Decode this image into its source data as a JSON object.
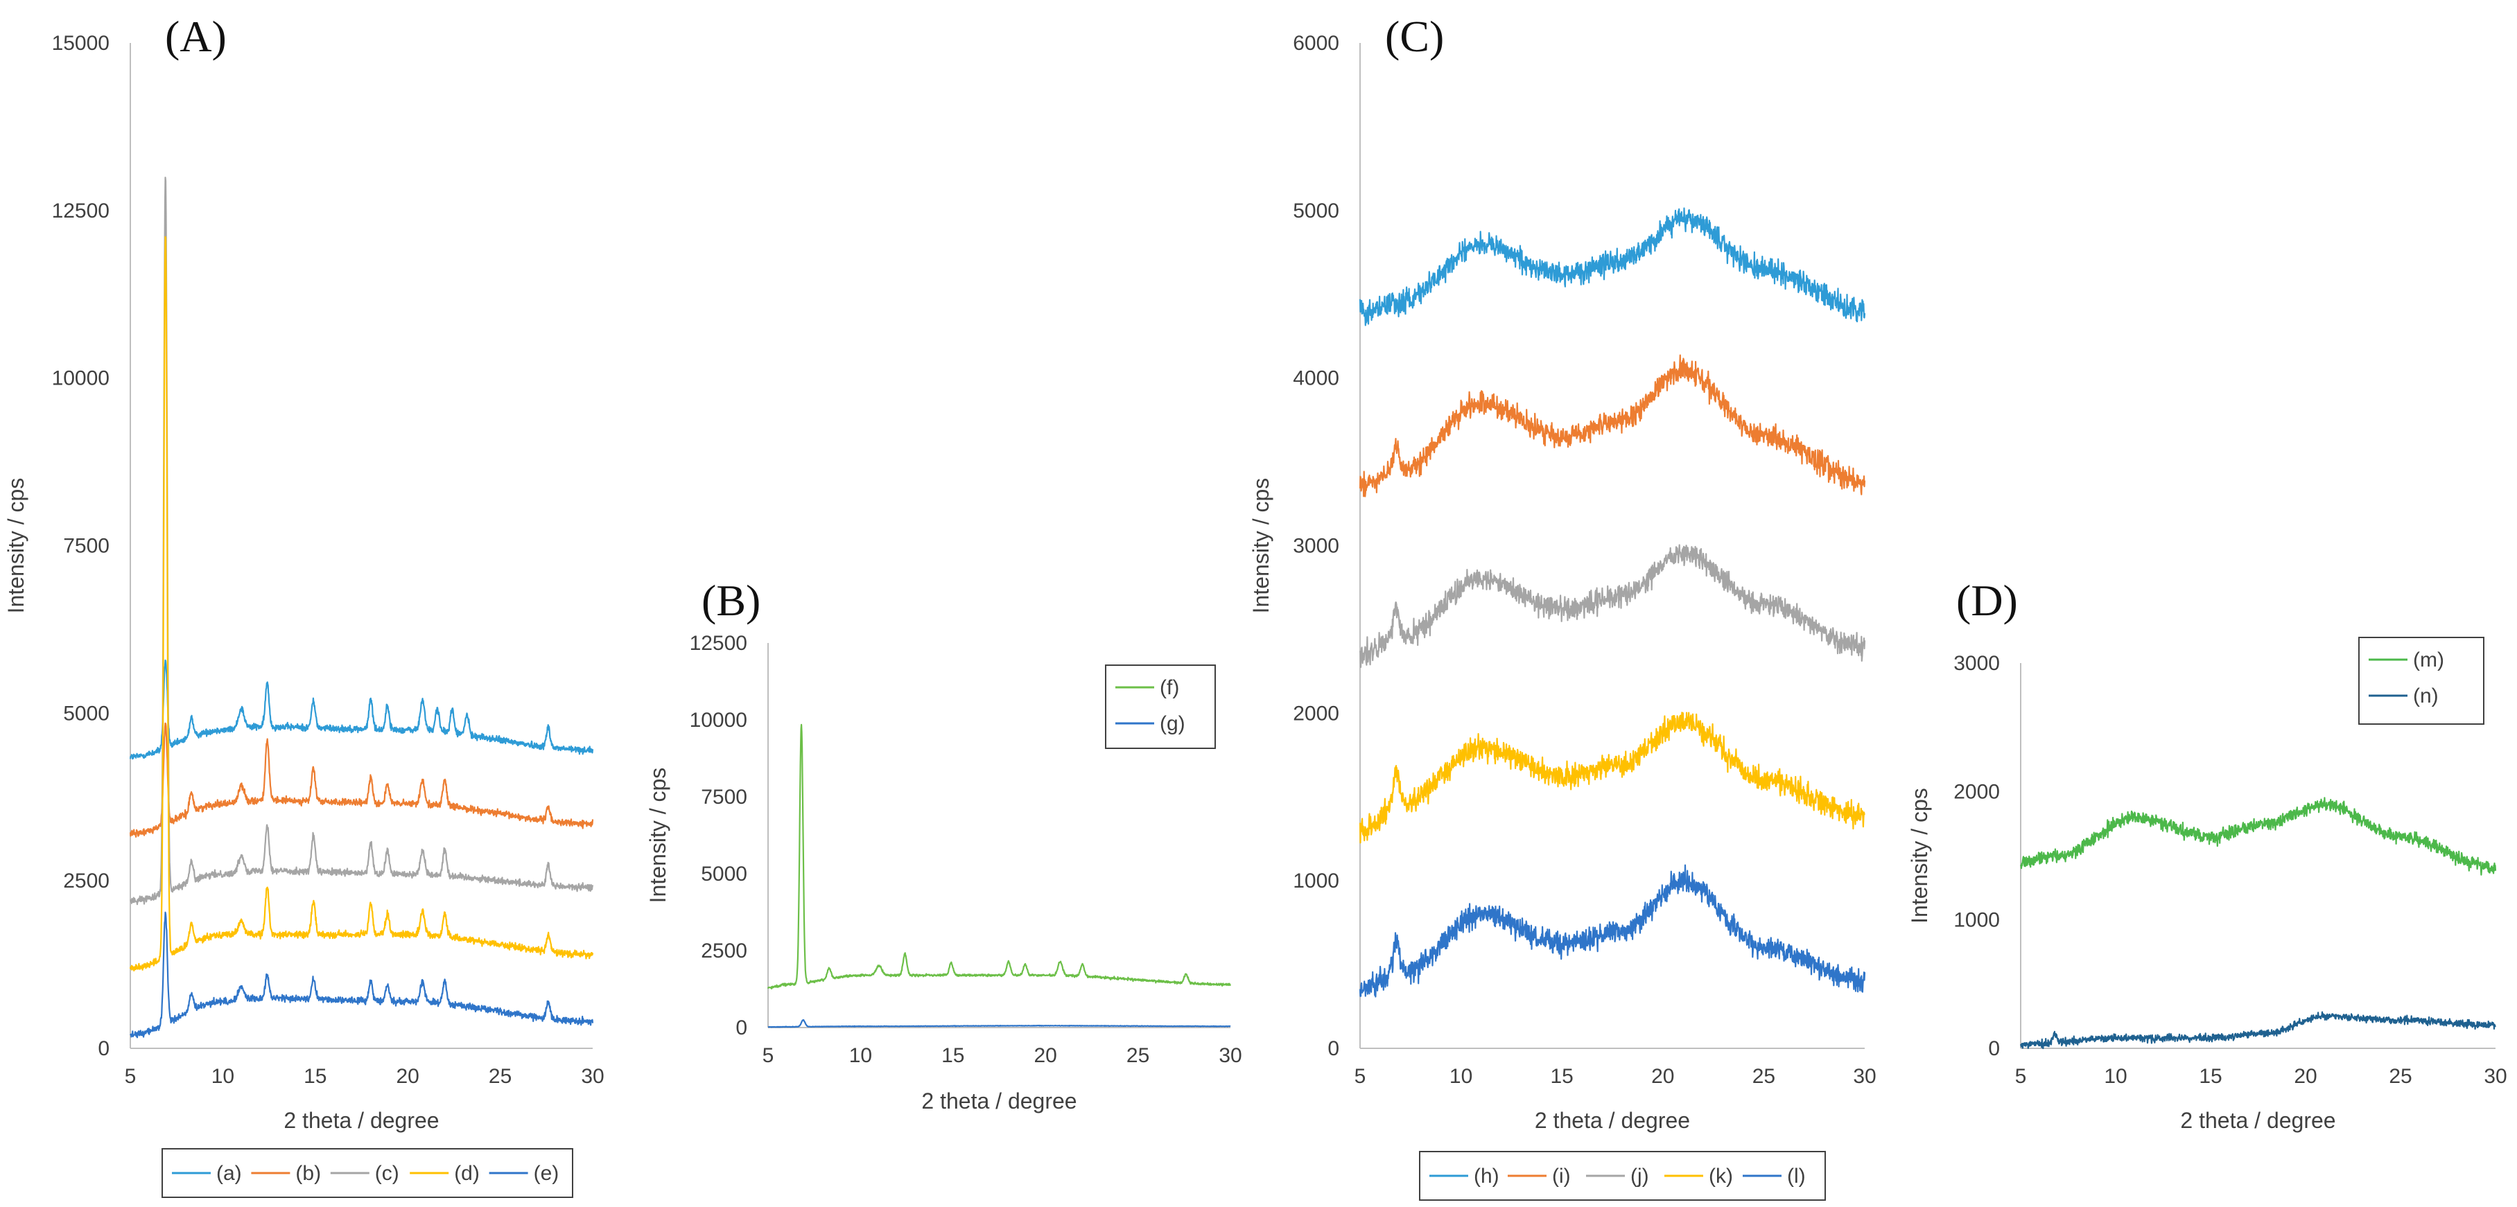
{
  "chart_data": [
    {
      "panel_label": "(A)",
      "type": "line",
      "xlabel": "2 theta / degree",
      "ylabel": "Intensity / cps",
      "xlim": [
        5,
        30
      ],
      "ylim": [
        0,
        15000
      ],
      "xticks": [
        5,
        10,
        15,
        20,
        25,
        30
      ],
      "yticks": [
        0,
        2500,
        5000,
        7500,
        10000,
        12500,
        15000
      ],
      "grid": false,
      "legend_position": "bottom-outside",
      "series": [
        {
          "name": "(a)",
          "color": "#2E9BD6",
          "baseline": [
            [
              5,
              4350
            ],
            [
              10,
              4750
            ],
            [
              12,
              4800
            ],
            [
              20,
              4750
            ],
            [
              30,
              4450
            ]
          ],
          "noise": 80,
          "peaks": [
            [
              6.9,
              1300,
              0.1
            ],
            [
              8.3,
              300,
              0.1
            ],
            [
              11.0,
              300,
              0.15
            ],
            [
              12.4,
              650,
              0.1
            ],
            [
              14.9,
              400,
              0.1
            ],
            [
              18.0,
              450,
              0.1
            ],
            [
              18.9,
              350,
              0.1
            ],
            [
              20.8,
              450,
              0.12
            ],
            [
              21.6,
              350,
              0.1
            ],
            [
              22.4,
              350,
              0.1
            ],
            [
              23.2,
              300,
              0.1
            ],
            [
              27.6,
              300,
              0.1
            ]
          ]
        },
        {
          "name": "(b)",
          "color": "#ED7D31",
          "baseline": [
            [
              5,
              3200
            ],
            [
              10,
              3650
            ],
            [
              12,
              3700
            ],
            [
              20,
              3650
            ],
            [
              30,
              3350
            ]
          ],
          "noise": 80,
          "peaks": [
            [
              6.9,
              1500,
              0.1
            ],
            [
              8.3,
              300,
              0.1
            ],
            [
              11.0,
              250,
              0.15
            ],
            [
              12.4,
              900,
              0.1
            ],
            [
              14.9,
              500,
              0.1
            ],
            [
              18.0,
              400,
              0.1
            ],
            [
              18.9,
              300,
              0.1
            ],
            [
              20.8,
              350,
              0.12
            ],
            [
              22.0,
              400,
              0.1
            ],
            [
              27.6,
              200,
              0.1
            ]
          ]
        },
        {
          "name": "(c)",
          "color": "#A5A5A5",
          "baseline": [
            [
              5,
              2200
            ],
            [
              10,
              2600
            ],
            [
              12,
              2650
            ],
            [
              20,
              2600
            ],
            [
              30,
              2400
            ]
          ],
          "noise": 80,
          "peaks": [
            [
              6.9,
              10700,
              0.09
            ],
            [
              8.3,
              300,
              0.1
            ],
            [
              11.0,
              250,
              0.15
            ],
            [
              12.4,
              700,
              0.1
            ],
            [
              14.9,
              550,
              0.1
            ],
            [
              18.0,
              450,
              0.1
            ],
            [
              18.9,
              350,
              0.1
            ],
            [
              20.8,
              350,
              0.12
            ],
            [
              22.0,
              400,
              0.1
            ],
            [
              27.6,
              300,
              0.1
            ]
          ]
        },
        {
          "name": "(d)",
          "color": "#FFC000",
          "baseline": [
            [
              5,
              1200
            ],
            [
              10,
              1700
            ],
            [
              12,
              1700
            ],
            [
              20,
              1700
            ],
            [
              30,
              1400
            ]
          ],
          "noise": 80,
          "peaks": [
            [
              6.9,
              10800,
              0.09
            ],
            [
              8.3,
              300,
              0.1
            ],
            [
              11.0,
              200,
              0.15
            ],
            [
              12.4,
              700,
              0.1
            ],
            [
              14.9,
              500,
              0.1
            ],
            [
              18.0,
              450,
              0.1
            ],
            [
              18.9,
              300,
              0.1
            ],
            [
              20.8,
              350,
              0.12
            ],
            [
              22.0,
              350,
              0.1
            ],
            [
              27.6,
              250,
              0.1
            ]
          ]
        },
        {
          "name": "(e)",
          "color": "#2F75C9",
          "baseline": [
            [
              5,
              200
            ],
            [
              10,
              700
            ],
            [
              12,
              750
            ],
            [
              20,
              700
            ],
            [
              30,
              400
            ]
          ],
          "noise": 80,
          "peaks": [
            [
              6.9,
              1650,
              0.1
            ],
            [
              8.3,
              250,
              0.1
            ],
            [
              11.0,
              200,
              0.15
            ],
            [
              12.4,
              350,
              0.1
            ],
            [
              14.9,
              300,
              0.1
            ],
            [
              18.0,
              300,
              0.1
            ],
            [
              18.9,
              250,
              0.1
            ],
            [
              20.8,
              300,
              0.12
            ],
            [
              22.0,
              350,
              0.1
            ],
            [
              27.6,
              250,
              0.1
            ]
          ]
        }
      ]
    },
    {
      "panel_label": "(B)",
      "type": "line",
      "xlabel": "2 theta / degree",
      "ylabel": "Intensity / cps",
      "xlim": [
        5,
        30
      ],
      "ylim": [
        0,
        12500
      ],
      "xticks": [
        5,
        10,
        15,
        20,
        25,
        30
      ],
      "yticks": [
        0,
        2500,
        5000,
        7500,
        10000,
        12500
      ],
      "grid": false,
      "legend_position": "top-right",
      "series": [
        {
          "name": "(f)",
          "color": "#6CBF48",
          "baseline": [
            [
              5,
              1300
            ],
            [
              6,
              1400
            ],
            [
              10,
              1700
            ],
            [
              13,
              1700
            ],
            [
              20,
              1700
            ],
            [
              30,
              1400
            ]
          ],
          "noise": 60,
          "peaks": [
            [
              6.8,
              8400,
              0.09
            ],
            [
              8.3,
              350,
              0.1
            ],
            [
              11.0,
              300,
              0.15
            ],
            [
              12.4,
              700,
              0.1
            ],
            [
              14.9,
              400,
              0.1
            ],
            [
              18.0,
              450,
              0.1
            ],
            [
              18.9,
              350,
              0.1
            ],
            [
              20.8,
              450,
              0.12
            ],
            [
              22.0,
              400,
              0.1
            ],
            [
              27.6,
              300,
              0.1
            ]
          ]
        },
        {
          "name": "(g)",
          "color": "#2F75C9",
          "baseline": [
            [
              5,
              20
            ],
            [
              10,
              40
            ],
            [
              20,
              60
            ],
            [
              30,
              40
            ]
          ],
          "noise": 12,
          "peaks": [
            [
              6.9,
              220,
              0.1
            ]
          ]
        }
      ]
    },
    {
      "panel_label": "(C)",
      "type": "line",
      "xlabel": "2 theta / degree",
      "ylabel": "Intensity / cps",
      "xlim": [
        5,
        30
      ],
      "ylim": [
        0,
        6000
      ],
      "xticks": [
        5,
        10,
        15,
        20,
        25,
        30
      ],
      "yticks": [
        0,
        1000,
        2000,
        3000,
        4000,
        5000,
        6000
      ],
      "grid": false,
      "legend_position": "bottom-outside",
      "series": [
        {
          "name": "(h)",
          "color": "#2E9BD6",
          "baseline": [
            [
              5,
              4400
            ],
            [
              7,
              4450
            ],
            [
              11,
              4800
            ],
            [
              15,
              4620
            ],
            [
              18,
              4700
            ],
            [
              21,
              4950
            ],
            [
              25,
              4650
            ],
            [
              30,
              4400
            ]
          ],
          "noise": 110,
          "peaks": []
        },
        {
          "name": "(i)",
          "color": "#ED7D31",
          "baseline": [
            [
              5,
              3350
            ],
            [
              7,
              3450
            ],
            [
              11,
              3850
            ],
            [
              15,
              3650
            ],
            [
              18,
              3750
            ],
            [
              21,
              4050
            ],
            [
              25,
              3650
            ],
            [
              30,
              3380
            ]
          ],
          "noise": 110,
          "peaks": [
            [
              6.8,
              150,
              0.15
            ]
          ]
        },
        {
          "name": "(j)",
          "color": "#A5A5A5",
          "baseline": [
            [
              5,
              2350
            ],
            [
              7,
              2450
            ],
            [
              11,
              2800
            ],
            [
              15,
              2620
            ],
            [
              18,
              2700
            ],
            [
              21,
              2950
            ],
            [
              25,
              2650
            ],
            [
              30,
              2400
            ]
          ],
          "noise": 110,
          "peaks": [
            [
              6.8,
              180,
              0.15
            ]
          ]
        },
        {
          "name": "(k)",
          "color": "#FFC000",
          "baseline": [
            [
              5,
              1300
            ],
            [
              7,
              1450
            ],
            [
              11,
              1800
            ],
            [
              15,
              1620
            ],
            [
              18,
              1700
            ],
            [
              21,
              1950
            ],
            [
              25,
              1600
            ],
            [
              30,
              1380
            ]
          ],
          "noise": 110,
          "peaks": [
            [
              6.8,
              220,
              0.15
            ]
          ]
        },
        {
          "name": "(l)",
          "color": "#2F75C9",
          "baseline": [
            [
              5,
              350
            ],
            [
              7,
              450
            ],
            [
              11,
              800
            ],
            [
              15,
              620
            ],
            [
              18,
              700
            ],
            [
              21,
              1000
            ],
            [
              25,
              600
            ],
            [
              30,
              400
            ]
          ],
          "noise": 110,
          "peaks": [
            [
              6.8,
              200,
              0.15
            ]
          ]
        }
      ]
    },
    {
      "panel_label": "(D)",
      "type": "line",
      "xlabel": "2 theta / degree",
      "ylabel": "Intensity / cps",
      "xlim": [
        5,
        30
      ],
      "ylim": [
        0,
        3000
      ],
      "xticks": [
        5,
        10,
        15,
        20,
        25,
        30
      ],
      "yticks": [
        0,
        1000,
        2000,
        3000
      ],
      "grid": false,
      "legend_position": "top-right",
      "series": [
        {
          "name": "(m)",
          "color": "#4CB84A",
          "baseline": [
            [
              5,
              1450
            ],
            [
              7,
              1500
            ],
            [
              11,
              1800
            ],
            [
              15,
              1650
            ],
            [
              18,
              1750
            ],
            [
              21,
              1900
            ],
            [
              25,
              1650
            ],
            [
              30,
              1400
            ]
          ],
          "noise": 80,
          "peaks": []
        },
        {
          "name": "(n)",
          "color": "#1F6190",
          "baseline": [
            [
              5,
              30
            ],
            [
              10,
              80
            ],
            [
              15,
              80
            ],
            [
              18,
              120
            ],
            [
              21,
              250
            ],
            [
              25,
              220
            ],
            [
              30,
              180
            ]
          ],
          "noise": 45,
          "peaks": [
            [
              6.8,
              60,
              0.12
            ]
          ]
        }
      ]
    }
  ]
}
